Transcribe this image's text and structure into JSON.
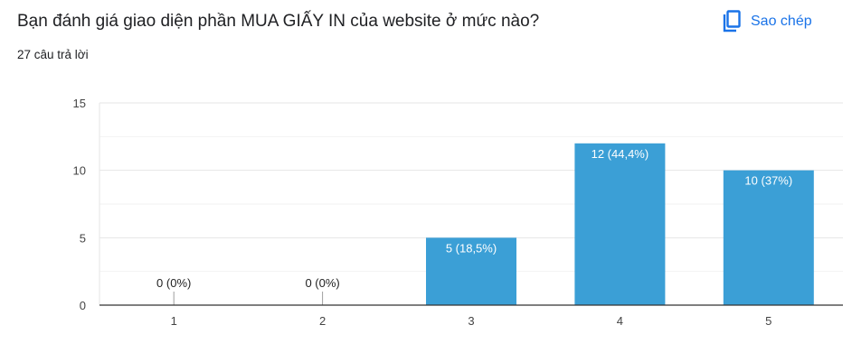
{
  "header": {
    "question": "Bạn đánh giá giao diện phần MUA GIẤY IN của website ở mức nào?",
    "response_count": "27 câu trả lời",
    "copy_label": "Sao chép",
    "copy_icon": "copy-icon"
  },
  "colors": {
    "bar": "#3b9fd6",
    "accent": "#1a73e8",
    "text": "#202124",
    "axis_text": "#444444",
    "grid": "#e6e6e6",
    "minor_grid": "#f2f2f2"
  },
  "chart_data": {
    "type": "bar",
    "categories": [
      "1",
      "2",
      "3",
      "4",
      "5"
    ],
    "values": [
      0,
      0,
      5,
      12,
      10
    ],
    "data_labels": [
      "0 (0%)",
      "0 (0%)",
      "5 (18,5%)",
      "12 (44,4%)",
      "10 (37%)"
    ],
    "ylim": [
      0,
      15
    ],
    "yticks": [
      0,
      5,
      10,
      15
    ],
    "grid": true,
    "title": "",
    "xlabel": "",
    "ylabel": ""
  }
}
